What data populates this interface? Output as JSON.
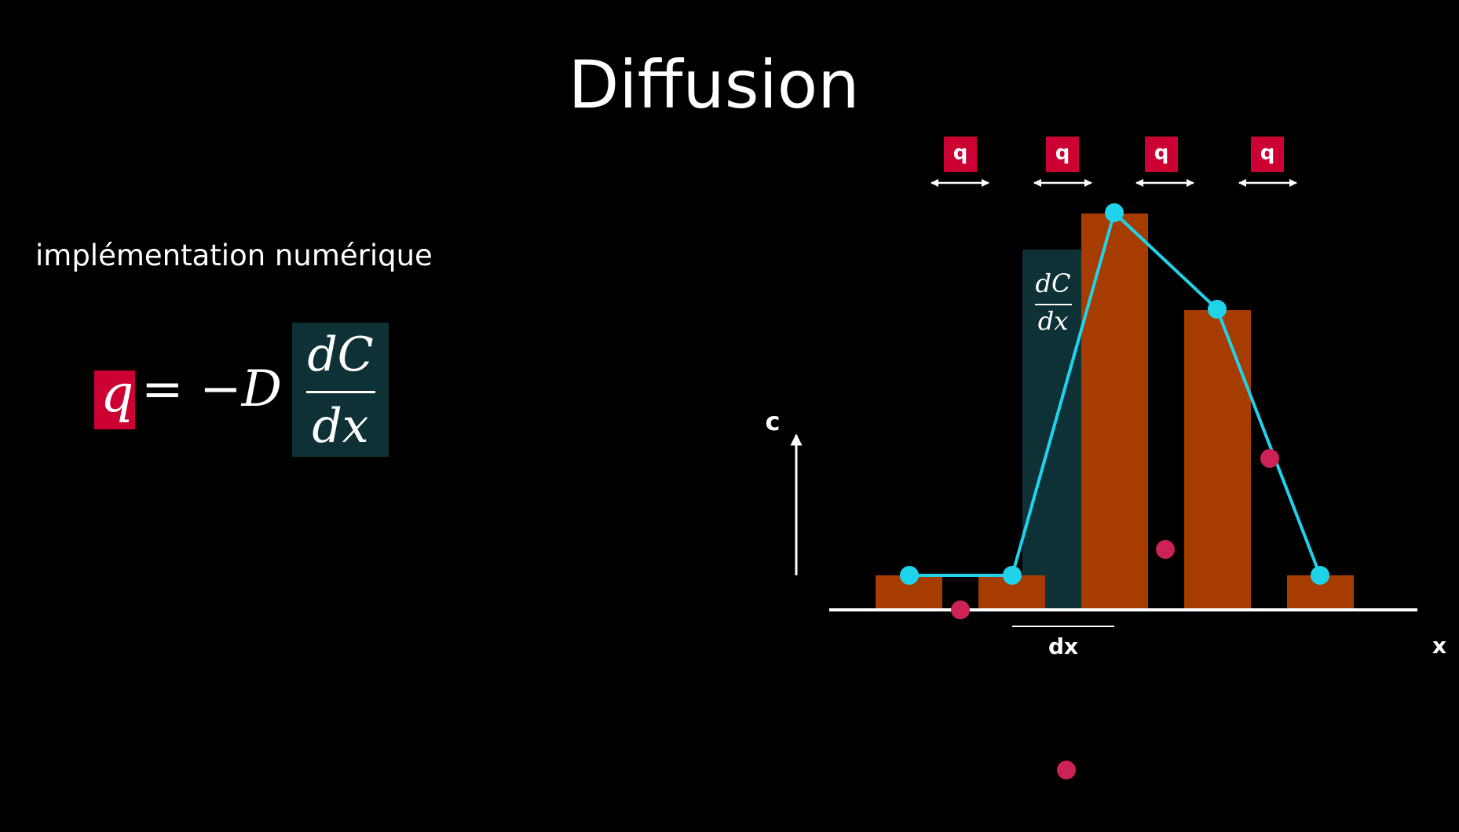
{
  "title": "Diffusion",
  "subtitle": "implémentation numérique",
  "equation": {
    "lhs": "q",
    "equals_minus": "= −",
    "coeff": "D",
    "numerator": "dC",
    "denominator": "dx"
  },
  "diagram": {
    "q_label": "q",
    "c_axis_label": "c",
    "x_axis_label": "x",
    "dx_label": "dx",
    "gradient_numerator": "dC",
    "gradient_denominator": "dx"
  },
  "colors": {
    "background": "#000000",
    "bar": "#a63c00",
    "line": "#1fd4ea",
    "flux_box": "#cc0033",
    "gradient_box": "#0e3136",
    "flux_dot": "#cc2255",
    "axis": "#ffffff"
  }
}
